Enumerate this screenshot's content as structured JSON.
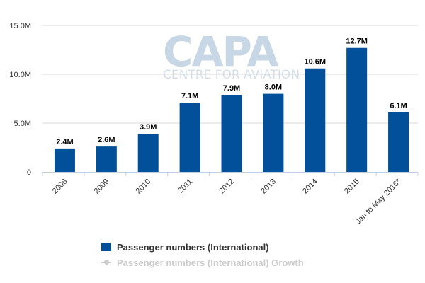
{
  "watermark": {
    "main": "CAPA",
    "sub": "CENTRE FOR AVIATION"
  },
  "legend": {
    "items": [
      {
        "label": "Passenger numbers (International)",
        "color": "#02509a",
        "kind": "bar",
        "active": true
      },
      {
        "label": "Passenger numbers (International) Growth",
        "color": "#cccccc",
        "kind": "line",
        "active": false
      }
    ]
  },
  "chart_data": {
    "type": "bar",
    "categories": [
      "2008",
      "2009",
      "2010",
      "2011",
      "2012",
      "2013",
      "2014",
      "2015",
      "Jan to May 2016*"
    ],
    "series": [
      {
        "name": "Passenger numbers (International)",
        "values": [
          2.4,
          2.6,
          3.9,
          7.1,
          7.9,
          8.0,
          10.6,
          12.7,
          6.1
        ],
        "labels": [
          "2.4M",
          "2.6M",
          "3.9M",
          "7.1M",
          "7.9M",
          "8.0M",
          "10.6M",
          "12.7M",
          "6.1M"
        ],
        "color": "#02509a"
      }
    ],
    "yticks": [
      {
        "value": 0,
        "label": "0"
      },
      {
        "value": 5,
        "label": "5.0M"
      },
      {
        "value": 10,
        "label": "10.0M"
      },
      {
        "value": 15,
        "label": "15.0M"
      }
    ],
    "ylim": [
      0,
      15
    ],
    "units": "millions",
    "grid": true,
    "legend_position": "bottom-left"
  }
}
